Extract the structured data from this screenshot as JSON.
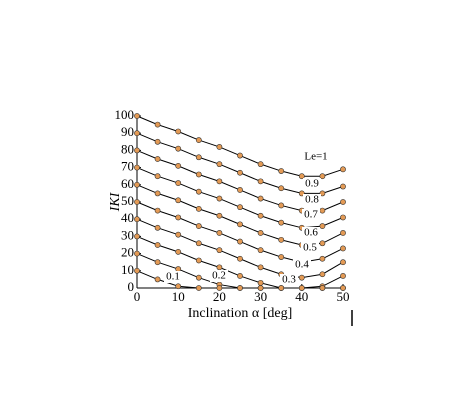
{
  "chart_data": {
    "type": "line",
    "x_label": "Inclination α [deg]",
    "y_label": "IKI",
    "x": [
      0,
      5,
      10,
      15,
      20,
      25,
      30,
      35,
      40,
      45,
      50
    ],
    "series": [
      {
        "name": "Le=1",
        "color": "#000000",
        "values": [
          100,
          95,
          91,
          86,
          82,
          77,
          72,
          68,
          65,
          65,
          69
        ]
      },
      {
        "name": "0.9",
        "color": "#000000",
        "values": [
          90,
          85,
          81,
          76,
          72,
          67,
          62,
          58,
          55,
          55,
          59
        ]
      },
      {
        "name": "0.8",
        "color": "#000000",
        "values": [
          80,
          75,
          71,
          66,
          62,
          57,
          52,
          48,
          45,
          45,
          50
        ]
      },
      {
        "name": "0.7",
        "color": "#000000",
        "values": [
          70,
          65,
          61,
          56,
          52,
          47,
          42,
          38,
          35,
          36,
          41
        ]
      },
      {
        "name": "0.6",
        "color": "#000000",
        "values": [
          60,
          55,
          51,
          46,
          42,
          37,
          32,
          28,
          25,
          26,
          32
        ]
      },
      {
        "name": "0.5",
        "color": "#000000",
        "values": [
          50,
          45,
          41,
          36,
          32,
          27,
          22,
          18,
          15,
          17,
          23
        ]
      },
      {
        "name": "0.4",
        "color": "#000000",
        "values": [
          40,
          35,
          31,
          26,
          22,
          17,
          12,
          8,
          6,
          8,
          15
        ]
      },
      {
        "name": "0.3",
        "color": "#000000",
        "values": [
          30,
          25,
          21,
          16,
          12,
          7,
          3,
          0,
          0,
          1,
          7
        ]
      },
      {
        "name": "0.2",
        "color": "#000000",
        "values": [
          20,
          15,
          11,
          6,
          2,
          0,
          0,
          0,
          0,
          0,
          0
        ]
      },
      {
        "name": "0.1",
        "color": "#000000",
        "values": [
          10,
          5,
          1,
          0,
          0,
          0,
          0,
          0,
          0,
          0,
          0
        ]
      }
    ],
    "marker_color": "#e39a55",
    "xlim": [
      0,
      50
    ],
    "xticks": [
      0,
      10,
      20,
      30,
      40,
      50
    ],
    "ylim": [
      0,
      100
    ],
    "yticks": [
      0,
      10,
      20,
      30,
      40,
      50,
      60,
      70,
      80,
      90,
      100
    ]
  }
}
